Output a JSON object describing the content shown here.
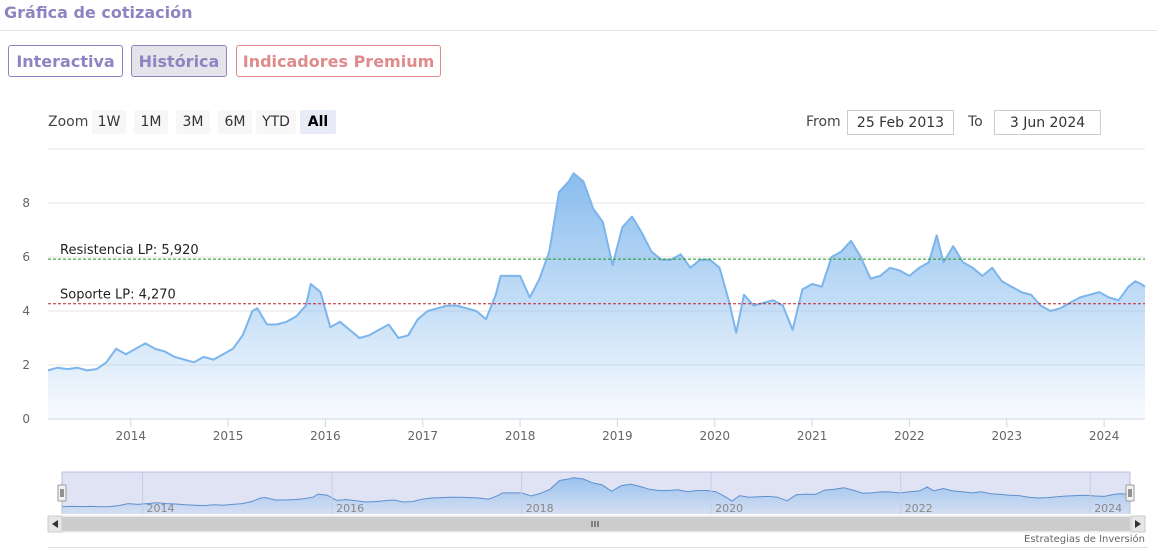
{
  "header": {
    "title": "Gráfica de cotización"
  },
  "tabs": [
    {
      "label": "Interactiva"
    },
    {
      "label": "Histórica"
    },
    {
      "label": "Indicadores Premium"
    }
  ],
  "zoom": {
    "label": "Zoom",
    "buttons": [
      "1W",
      "1M",
      "3M",
      "6M",
      "YTD",
      "All"
    ],
    "active": "All"
  },
  "range": {
    "from_label": "From",
    "from_value": "25 Feb 2013",
    "to_label": "To",
    "to_value": "3 Jun 2024"
  },
  "credit": "Estrategias de Inversión",
  "colors": {
    "line": "#7cb5ec",
    "resistance": "#1a9a1a",
    "support": "#c0202a",
    "accent": "#8e84c2",
    "premium": "#e08b8b"
  },
  "chart_data": {
    "type": "area",
    "title": "",
    "xlabel": "",
    "ylabel": "",
    "ylim": [
      0,
      10
    ],
    "xlim": [
      2013.15,
      2024.42
    ],
    "grid": true,
    "yticks": [
      0,
      2,
      4,
      6,
      8
    ],
    "xticks": [
      2014,
      2015,
      2016,
      2017,
      2018,
      2019,
      2020,
      2021,
      2022,
      2023,
      2024
    ],
    "series": [
      {
        "points": [
          [
            2013.15,
            1.8
          ],
          [
            2013.25,
            1.9
          ],
          [
            2013.35,
            1.85
          ],
          [
            2013.45,
            1.9
          ],
          [
            2013.55,
            1.8
          ],
          [
            2013.65,
            1.85
          ],
          [
            2013.75,
            2.1
          ],
          [
            2013.85,
            2.6
          ],
          [
            2013.95,
            2.4
          ],
          [
            2014.05,
            2.6
          ],
          [
            2014.15,
            2.8
          ],
          [
            2014.25,
            2.6
          ],
          [
            2014.35,
            2.5
          ],
          [
            2014.45,
            2.3
          ],
          [
            2014.55,
            2.2
          ],
          [
            2014.65,
            2.1
          ],
          [
            2014.75,
            2.3
          ],
          [
            2014.85,
            2.2
          ],
          [
            2014.95,
            2.4
          ],
          [
            2015.05,
            2.6
          ],
          [
            2015.15,
            3.1
          ],
          [
            2015.25,
            4.0
          ],
          [
            2015.3,
            4.1
          ],
          [
            2015.4,
            3.5
          ],
          [
            2015.5,
            3.5
          ],
          [
            2015.6,
            3.6
          ],
          [
            2015.7,
            3.8
          ],
          [
            2015.8,
            4.2
          ],
          [
            2015.85,
            5.0
          ],
          [
            2015.95,
            4.7
          ],
          [
            2016.05,
            3.4
          ],
          [
            2016.15,
            3.6
          ],
          [
            2016.25,
            3.3
          ],
          [
            2016.35,
            3.0
          ],
          [
            2016.45,
            3.1
          ],
          [
            2016.55,
            3.3
          ],
          [
            2016.65,
            3.5
          ],
          [
            2016.75,
            3.0
          ],
          [
            2016.85,
            3.1
          ],
          [
            2016.95,
            3.7
          ],
          [
            2017.05,
            4.0
          ],
          [
            2017.15,
            4.1
          ],
          [
            2017.25,
            4.2
          ],
          [
            2017.35,
            4.2
          ],
          [
            2017.45,
            4.1
          ],
          [
            2017.55,
            4.0
          ],
          [
            2017.65,
            3.7
          ],
          [
            2017.75,
            4.6
          ],
          [
            2017.8,
            5.3
          ],
          [
            2017.9,
            5.3
          ],
          [
            2018.0,
            5.3
          ],
          [
            2018.1,
            4.5
          ],
          [
            2018.2,
            5.2
          ],
          [
            2018.3,
            6.2
          ],
          [
            2018.4,
            8.4
          ],
          [
            2018.5,
            8.8
          ],
          [
            2018.55,
            9.1
          ],
          [
            2018.65,
            8.8
          ],
          [
            2018.75,
            7.8
          ],
          [
            2018.85,
            7.3
          ],
          [
            2018.95,
            5.7
          ],
          [
            2019.05,
            7.1
          ],
          [
            2019.15,
            7.5
          ],
          [
            2019.25,
            6.9
          ],
          [
            2019.35,
            6.2
          ],
          [
            2019.45,
            5.9
          ],
          [
            2019.55,
            5.9
          ],
          [
            2019.65,
            6.1
          ],
          [
            2019.75,
            5.6
          ],
          [
            2019.85,
            5.9
          ],
          [
            2019.95,
            5.9
          ],
          [
            2020.05,
            5.6
          ],
          [
            2020.15,
            4.3
          ],
          [
            2020.22,
            3.2
          ],
          [
            2020.3,
            4.6
          ],
          [
            2020.4,
            4.2
          ],
          [
            2020.5,
            4.3
          ],
          [
            2020.6,
            4.4
          ],
          [
            2020.7,
            4.2
          ],
          [
            2020.8,
            3.3
          ],
          [
            2020.9,
            4.8
          ],
          [
            2021.0,
            5.0
          ],
          [
            2021.1,
            4.9
          ],
          [
            2021.2,
            6.0
          ],
          [
            2021.3,
            6.2
          ],
          [
            2021.4,
            6.6
          ],
          [
            2021.5,
            6.0
          ],
          [
            2021.6,
            5.2
          ],
          [
            2021.7,
            5.3
          ],
          [
            2021.8,
            5.6
          ],
          [
            2021.9,
            5.5
          ],
          [
            2022.0,
            5.3
          ],
          [
            2022.1,
            5.6
          ],
          [
            2022.2,
            5.8
          ],
          [
            2022.28,
            6.8
          ],
          [
            2022.35,
            5.8
          ],
          [
            2022.45,
            6.4
          ],
          [
            2022.55,
            5.8
          ],
          [
            2022.65,
            5.6
          ],
          [
            2022.75,
            5.3
          ],
          [
            2022.85,
            5.6
          ],
          [
            2022.95,
            5.1
          ],
          [
            2023.05,
            4.9
          ],
          [
            2023.15,
            4.7
          ],
          [
            2023.25,
            4.6
          ],
          [
            2023.35,
            4.2
          ],
          [
            2023.45,
            4.0
          ],
          [
            2023.55,
            4.1
          ],
          [
            2023.65,
            4.3
          ],
          [
            2023.75,
            4.5
          ],
          [
            2023.85,
            4.6
          ],
          [
            2023.95,
            4.7
          ],
          [
            2024.05,
            4.5
          ],
          [
            2024.15,
            4.4
          ],
          [
            2024.25,
            4.9
          ],
          [
            2024.32,
            5.1
          ],
          [
            2024.38,
            5.0
          ],
          [
            2024.42,
            4.9
          ]
        ]
      }
    ],
    "plot_lines": [
      {
        "label": "Resistencia LP: 5,920",
        "value": 5.92,
        "color": "#1a9a1a",
        "style": "dashed"
      },
      {
        "label": "Soporte LP: 4,270",
        "value": 4.27,
        "color": "#c0202a",
        "style": "dashed"
      }
    ],
    "navigator_ticks": [
      2014,
      2016,
      2018,
      2020,
      2022,
      2024
    ]
  }
}
